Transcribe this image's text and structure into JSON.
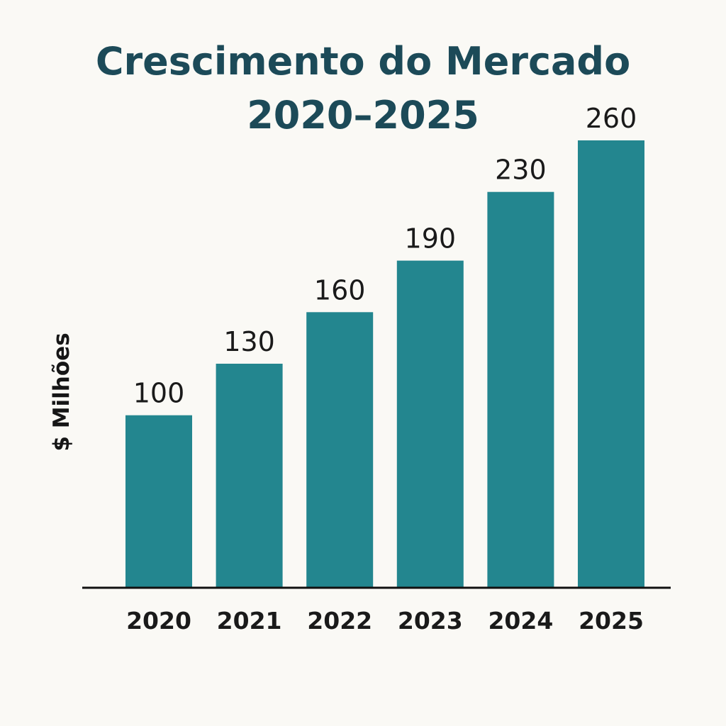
{
  "chart_data": {
    "type": "bar",
    "title": "Crescimento do Mercado",
    "subtitle": "2020–2025",
    "xlabel": "",
    "ylabel": "$ Milhões",
    "categories": [
      "2020",
      "2021",
      "2022",
      "2023",
      "2024",
      "2025"
    ],
    "values": [
      100,
      130,
      160,
      190,
      230,
      260
    ],
    "data_labels": [
      "100",
      "130",
      "160",
      "190",
      "230",
      "260"
    ],
    "ylim": [
      0,
      260
    ],
    "grid": false,
    "legend": "none",
    "bar_color": "#23868f",
    "title_color": "#1c4a58",
    "background_color": "#faf9f5"
  }
}
